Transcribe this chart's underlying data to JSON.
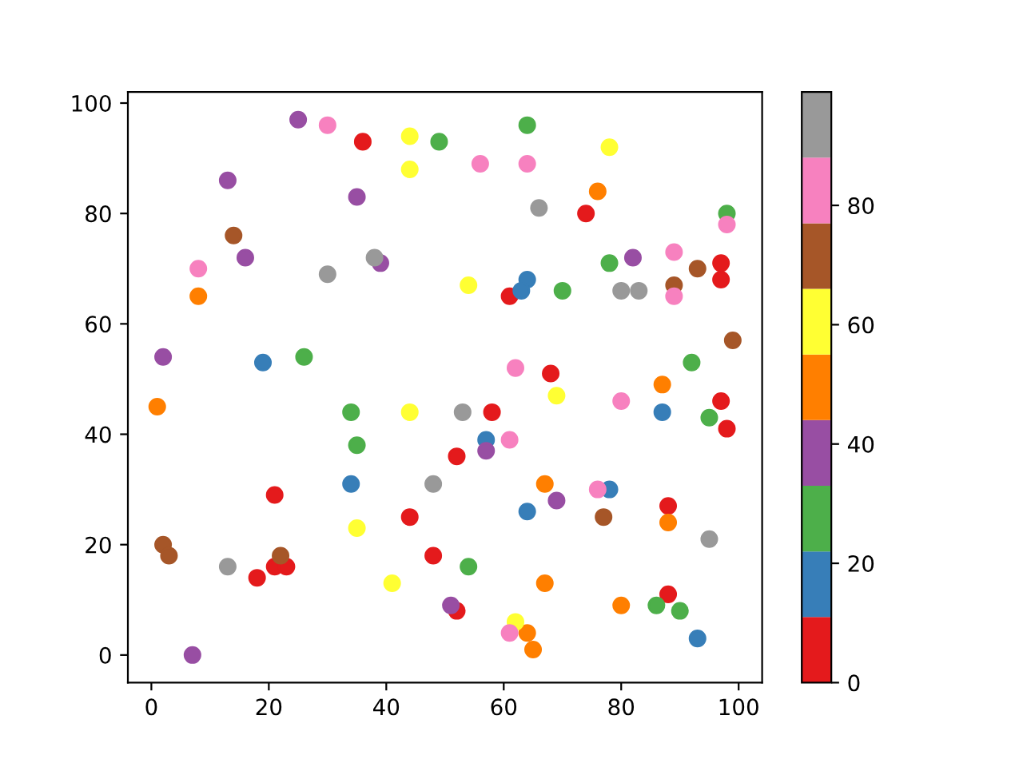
{
  "chart_data": {
    "type": "scatter",
    "series": [
      {
        "color": "#e41a1c",
        "x": [
          36,
          74,
          97,
          97,
          61,
          68,
          97,
          98,
          21,
          44,
          48,
          21,
          23,
          18,
          58,
          52,
          88,
          52,
          88
        ],
        "values": [
          93,
          80,
          71,
          68,
          65,
          51,
          46,
          41,
          29,
          25,
          18,
          16,
          16,
          14,
          44,
          36,
          27,
          8,
          11
        ]
      },
      {
        "color": "#377eb8",
        "x": [
          19,
          64,
          63,
          87,
          34,
          57,
          78,
          64,
          93
        ],
        "values": [
          53,
          68,
          66,
          44,
          31,
          39,
          30,
          26,
          3
        ]
      },
      {
        "color": "#4daf4a",
        "x": [
          49,
          26,
          64,
          98,
          78,
          70,
          92,
          95,
          34,
          35,
          54,
          86,
          90
        ],
        "values": [
          93,
          54,
          96,
          80,
          71,
          66,
          53,
          43,
          44,
          38,
          16,
          9,
          8
        ]
      },
      {
        "color": "#984ea3",
        "x": [
          25,
          13,
          35,
          16,
          39,
          2,
          82,
          51,
          7,
          57,
          69
        ],
        "values": [
          97,
          86,
          83,
          72,
          71,
          54,
          72,
          9,
          0,
          37,
          28
        ]
      },
      {
        "color": "#ff7f00",
        "x": [
          8,
          76,
          87,
          1,
          67,
          88,
          67,
          80,
          64,
          65
        ],
        "values": [
          65,
          84,
          49,
          45,
          31,
          24,
          13,
          9,
          4,
          1
        ]
      },
      {
        "color": "#ffff33",
        "x": [
          44,
          44,
          78,
          54,
          69,
          44,
          35,
          41,
          62
        ],
        "values": [
          94,
          88,
          92,
          67,
          47,
          44,
          23,
          13,
          6
        ]
      },
      {
        "color": "#a65628",
        "x": [
          14,
          93,
          89,
          99,
          2,
          3,
          22,
          77
        ],
        "values": [
          76,
          70,
          67,
          57,
          20,
          18,
          18,
          25
        ]
      },
      {
        "color": "#f781bf",
        "x": [
          30,
          8,
          56,
          64,
          98,
          89,
          89,
          62,
          80,
          61,
          76,
          61
        ],
        "values": [
          96,
          70,
          89,
          89,
          78,
          73,
          65,
          52,
          46,
          39,
          30,
          4
        ]
      },
      {
        "color": "#999999",
        "x": [
          38,
          30,
          66,
          80,
          83,
          48,
          13,
          53,
          95
        ],
        "values": [
          72,
          69,
          81,
          66,
          66,
          31,
          16,
          44,
          21
        ]
      }
    ],
    "clim": [
      0,
      99
    ],
    "cticks": [
      0,
      20,
      40,
      60,
      80
    ],
    "xlim": [
      -4,
      104
    ],
    "ylim": [
      -5,
      102
    ],
    "xticks": [
      0,
      20,
      40,
      60,
      80,
      100
    ],
    "yticks": [
      0,
      20,
      40,
      60,
      80,
      100
    ],
    "marker": "circle",
    "grid": false
  }
}
